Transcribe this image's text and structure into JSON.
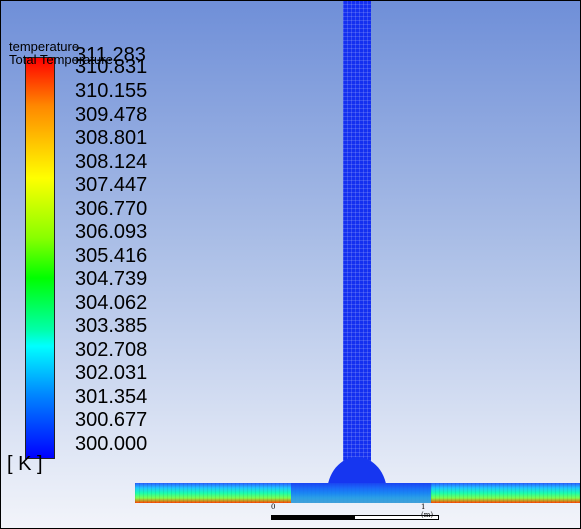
{
  "legend": {
    "title_line1": "temperature",
    "title_line2": "Total Temperature",
    "unit": "[ K ]",
    "labels": [
      "311.283",
      "310.831",
      "310.155",
      "309.478",
      "308.801",
      "308.124",
      "307.447",
      "306.770",
      "306.093",
      "305.416",
      "304.739",
      "304.062",
      "303.385",
      "302.708",
      "302.031",
      "301.354",
      "300.677",
      "300.000"
    ],
    "colors": [
      "#ff0000",
      "#ff8800",
      "#ffff00",
      "#88ff00",
      "#00ff00",
      "#00ffaa",
      "#00ffff",
      "#0088ff",
      "#0000ff"
    ]
  },
  "scale_bar": {
    "left_label": "0",
    "right_label": "1 (m)"
  }
}
